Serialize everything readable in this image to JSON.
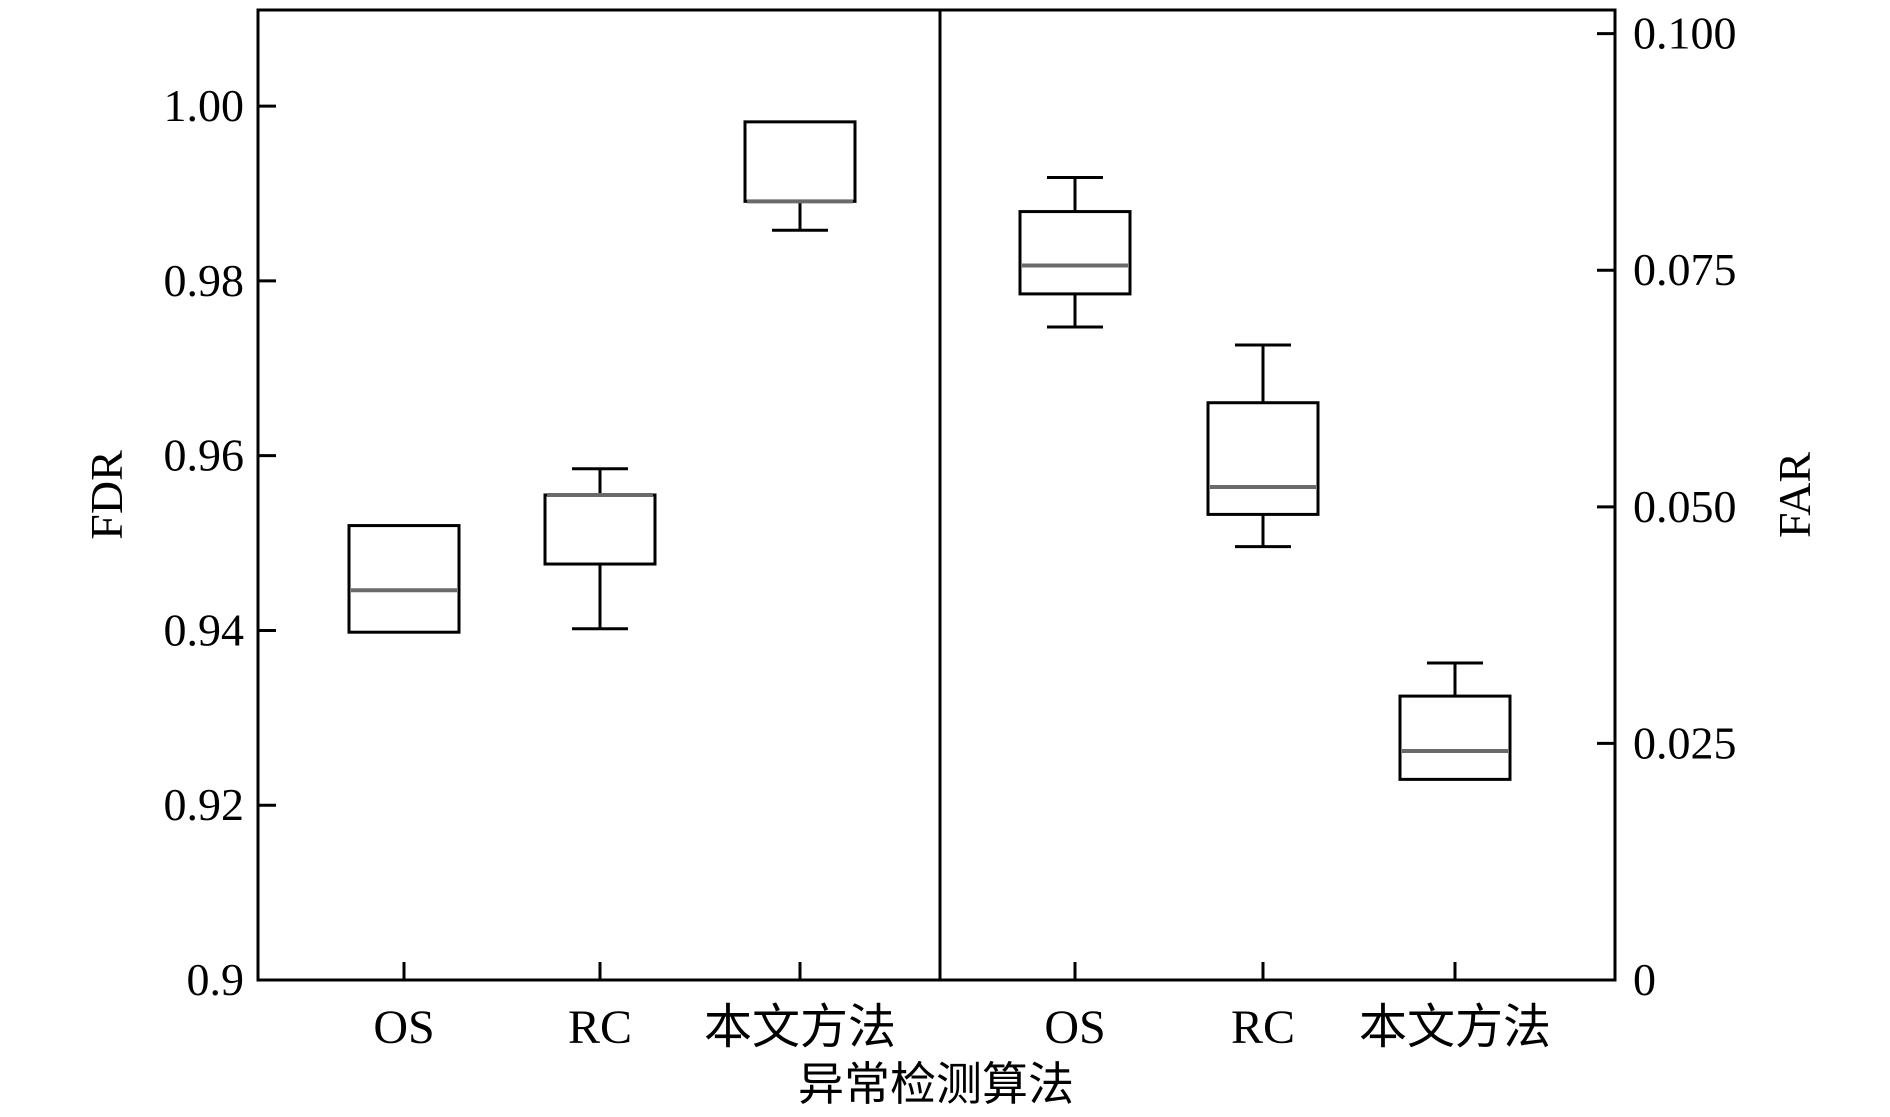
{
  "chart_data": [
    {
      "type": "box",
      "panel": "left",
      "xlabel": "异常检测算法",
      "ylabel": "FDR",
      "ylim": [
        0.9,
        1.011
      ],
      "yticks": [
        "0.9",
        "0.92",
        "0.94",
        "0.96",
        "0.98",
        "1.00"
      ],
      "categories": [
        "OS",
        "RC",
        "本文方法"
      ],
      "boxes": [
        {
          "category": "OS",
          "whisker_low": null,
          "q1": 0.9398,
          "median": 0.9446,
          "q3": 0.952,
          "whisker_high": null
        },
        {
          "category": "RC",
          "whisker_low": 0.9402,
          "q1": 0.9476,
          "median": 0.9555,
          "q3": 0.9555,
          "whisker_high": 0.9585
        },
        {
          "category": "本文方法",
          "whisker_low": 0.9858,
          "q1": 0.9891,
          "median": 0.9891,
          "q3": 0.9982,
          "whisker_high": null
        }
      ]
    },
    {
      "type": "box",
      "panel": "right",
      "ylabel": "FAR",
      "ylim": [
        0,
        0.1025
      ],
      "yticks": [
        "0",
        "0.025",
        "0.050",
        "0.075",
        "0.100"
      ],
      "categories": [
        "OS",
        "RC",
        "本文方法"
      ],
      "boxes": [
        {
          "category": "OS",
          "whisker_low": 0.069,
          "q1": 0.0725,
          "median": 0.0755,
          "q3": 0.0812,
          "whisker_high": 0.0848
        },
        {
          "category": "RC",
          "whisker_low": 0.0458,
          "q1": 0.0492,
          "median": 0.0521,
          "q3": 0.061,
          "whisker_high": 0.0671
        },
        {
          "category": "本文方法",
          "whisker_low": null,
          "q1": 0.0212,
          "median": 0.0242,
          "q3": 0.03,
          "whisker_high": 0.0335
        }
      ]
    }
  ],
  "colors": {
    "frame": "#000000",
    "box": "#000000",
    "median": "#6a6a6a"
  }
}
